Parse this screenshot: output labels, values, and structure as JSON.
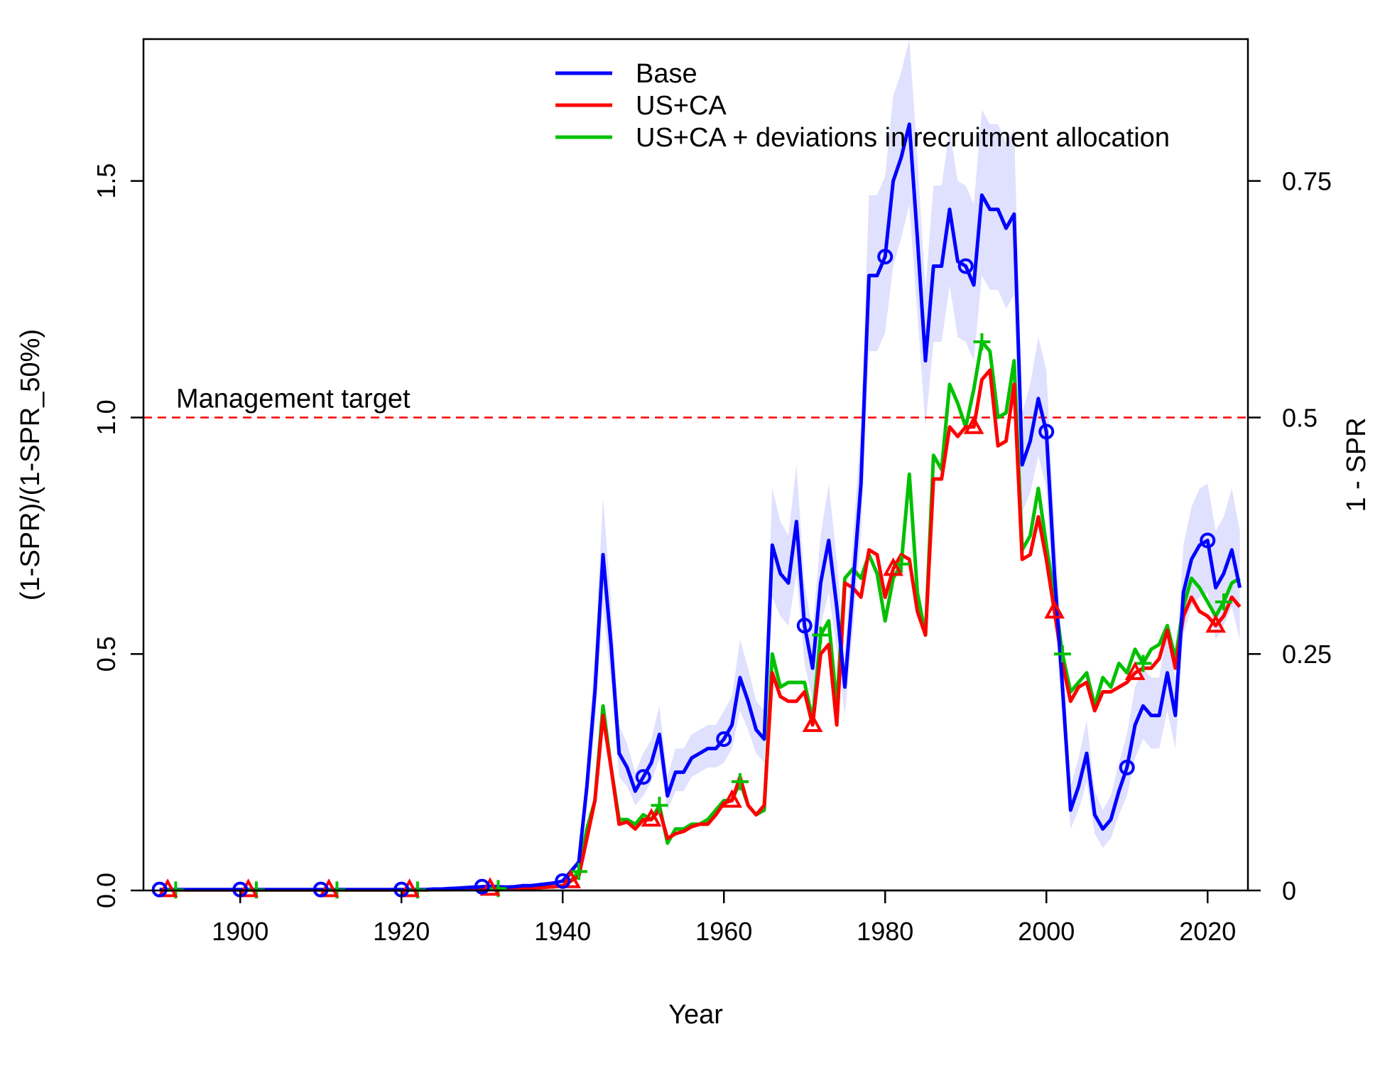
{
  "chart_data": {
    "type": "line",
    "title": "",
    "xlabel": "Year",
    "ylabel": "(1-SPR)/(1-SPR_50%)",
    "y2label": "1 - SPR",
    "xlim": [
      1888,
      2025
    ],
    "ylim": [
      0,
      1.8
    ],
    "y2lim": [
      0,
      0.9
    ],
    "x_ticks": [
      "1900",
      "1920",
      "1940",
      "1960",
      "1980",
      "2000",
      "2020"
    ],
    "y_ticks": [
      "0.0",
      "0.5",
      "1.0",
      "1.5"
    ],
    "y2_ticks": [
      "0",
      "0.25",
      "0.5",
      "0.75"
    ],
    "legend_position": "top",
    "grid": false,
    "reference_line": {
      "y": 1.0,
      "label": "Management target",
      "color": "#ff0000"
    },
    "series": [
      {
        "name": "Base",
        "color": "#0000ff",
        "marker": "circle",
        "x": [
          1890,
          1891,
          1892,
          1893,
          1894,
          1895,
          1896,
          1897,
          1898,
          1899,
          1900,
          1901,
          1902,
          1903,
          1904,
          1905,
          1906,
          1907,
          1908,
          1909,
          1910,
          1911,
          1912,
          1913,
          1914,
          1915,
          1916,
          1917,
          1918,
          1919,
          1920,
          1921,
          1922,
          1923,
          1924,
          1925,
          1926,
          1927,
          1928,
          1929,
          1930,
          1931,
          1932,
          1933,
          1934,
          1935,
          1936,
          1937,
          1938,
          1939,
          1940,
          1941,
          1942,
          1943,
          1944,
          1945,
          1946,
          1947,
          1948,
          1949,
          1950,
          1951,
          1952,
          1953,
          1954,
          1955,
          1956,
          1957,
          1958,
          1959,
          1960,
          1961,
          1962,
          1963,
          1964,
          1965,
          1966,
          1967,
          1968,
          1969,
          1970,
          1971,
          1972,
          1973,
          1974,
          1975,
          1976,
          1977,
          1978,
          1979,
          1980,
          1981,
          1982,
          1983,
          1984,
          1985,
          1986,
          1987,
          1988,
          1989,
          1990,
          1991,
          1992,
          1993,
          1994,
          1995,
          1996,
          1997,
          1998,
          1999,
          2000,
          2001,
          2002,
          2003,
          2004,
          2005,
          2006,
          2007,
          2008,
          2009,
          2010,
          2011,
          2012,
          2013,
          2014,
          2015,
          2016,
          2017,
          2018,
          2019,
          2020,
          2021,
          2022,
          2023,
          2024
        ],
        "values": [
          0.002,
          0.002,
          0.002,
          0.002,
          0.002,
          0.002,
          0.002,
          0.002,
          0.002,
          0.002,
          0.002,
          0.002,
          0.002,
          0.002,
          0.002,
          0.002,
          0.002,
          0.002,
          0.002,
          0.002,
          0.002,
          0.002,
          0.002,
          0.002,
          0.002,
          0.002,
          0.002,
          0.002,
          0.002,
          0.002,
          0.002,
          0.002,
          0.002,
          0.002,
          0.003,
          0.003,
          0.004,
          0.005,
          0.006,
          0.007,
          0.008,
          0.009,
          0.008,
          0.007,
          0.008,
          0.01,
          0.01,
          0.012,
          0.014,
          0.016,
          0.02,
          0.04,
          0.06,
          0.22,
          0.42,
          0.71,
          0.52,
          0.29,
          0.26,
          0.21,
          0.24,
          0.27,
          0.33,
          0.2,
          0.25,
          0.25,
          0.28,
          0.29,
          0.3,
          0.3,
          0.32,
          0.35,
          0.45,
          0.4,
          0.34,
          0.32,
          0.73,
          0.67,
          0.65,
          0.78,
          0.56,
          0.47,
          0.65,
          0.74,
          0.6,
          0.43,
          0.64,
          0.86,
          1.3,
          1.3,
          1.34,
          1.5,
          1.55,
          1.62,
          1.38,
          1.12,
          1.32,
          1.32,
          1.44,
          1.33,
          1.32,
          1.28,
          1.47,
          1.44,
          1.44,
          1.4,
          1.43,
          0.9,
          0.95,
          1.04,
          0.97,
          0.67,
          0.43,
          0.17,
          0.22,
          0.29,
          0.16,
          0.13,
          0.15,
          0.21,
          0.26,
          0.35,
          0.39,
          0.37,
          0.37,
          0.46,
          0.37,
          0.63,
          0.7,
          0.73,
          0.74,
          0.64,
          0.67,
          0.72,
          0.64
        ]
      },
      {
        "name": "US+CA",
        "color": "#ff0000",
        "marker": "triangle",
        "x": [
          1890,
          1891,
          1892,
          1893,
          1894,
          1895,
          1896,
          1897,
          1898,
          1899,
          1900,
          1901,
          1902,
          1903,
          1904,
          1905,
          1906,
          1907,
          1908,
          1909,
          1910,
          1911,
          1912,
          1913,
          1914,
          1915,
          1916,
          1917,
          1918,
          1919,
          1920,
          1921,
          1922,
          1923,
          1924,
          1925,
          1926,
          1927,
          1928,
          1929,
          1930,
          1931,
          1932,
          1933,
          1934,
          1935,
          1936,
          1937,
          1938,
          1939,
          1940,
          1941,
          1942,
          1943,
          1944,
          1945,
          1946,
          1947,
          1948,
          1949,
          1950,
          1951,
          1952,
          1953,
          1954,
          1955,
          1956,
          1957,
          1958,
          1959,
          1960,
          1961,
          1962,
          1963,
          1964,
          1965,
          1966,
          1967,
          1968,
          1969,
          1970,
          1971,
          1972,
          1973,
          1974,
          1975,
          1976,
          1977,
          1978,
          1979,
          1980,
          1981,
          1982,
          1983,
          1984,
          1985,
          1986,
          1987,
          1988,
          1989,
          1990,
          1991,
          1992,
          1993,
          1994,
          1995,
          1996,
          1997,
          1998,
          1999,
          2000,
          2001,
          2002,
          2003,
          2004,
          2005,
          2006,
          2007,
          2008,
          2009,
          2010,
          2011,
          2012,
          2013,
          2014,
          2015,
          2016,
          2017,
          2018,
          2019,
          2020,
          2021,
          2022,
          2023,
          2024
        ],
        "values": [
          0.001,
          0.001,
          0.001,
          0.001,
          0.001,
          0.001,
          0.001,
          0.001,
          0.001,
          0.001,
          0.001,
          0.001,
          0.001,
          0.001,
          0.001,
          0.001,
          0.001,
          0.001,
          0.001,
          0.001,
          0.001,
          0.001,
          0.001,
          0.001,
          0.001,
          0.001,
          0.001,
          0.001,
          0.001,
          0.001,
          0.001,
          0.001,
          0.001,
          0.001,
          0.002,
          0.002,
          0.002,
          0.003,
          0.003,
          0.003,
          0.004,
          0.004,
          0.004,
          0.004,
          0.004,
          0.005,
          0.005,
          0.006,
          0.007,
          0.008,
          0.01,
          0.02,
          0.03,
          0.11,
          0.19,
          0.37,
          0.26,
          0.14,
          0.145,
          0.13,
          0.15,
          0.15,
          0.17,
          0.11,
          0.12,
          0.125,
          0.135,
          0.14,
          0.14,
          0.16,
          0.185,
          0.19,
          0.24,
          0.18,
          0.16,
          0.18,
          0.46,
          0.41,
          0.4,
          0.4,
          0.42,
          0.35,
          0.5,
          0.52,
          0.35,
          0.65,
          0.64,
          0.62,
          0.72,
          0.71,
          0.62,
          0.68,
          0.71,
          0.7,
          0.59,
          0.54,
          0.87,
          0.87,
          0.98,
          0.96,
          0.98,
          0.98,
          1.08,
          1.1,
          0.94,
          0.95,
          1.07,
          0.7,
          0.71,
          0.79,
          0.7,
          0.59,
          0.48,
          0.4,
          0.43,
          0.44,
          0.38,
          0.42,
          0.42,
          0.43,
          0.44,
          0.46,
          0.47,
          0.47,
          0.49,
          0.55,
          0.47,
          0.58,
          0.62,
          0.59,
          0.58,
          0.56,
          0.58,
          0.62,
          0.6
        ]
      },
      {
        "name": "US+CA + deviations in recruitment allocation",
        "color": "#00c000",
        "marker": "plus",
        "x": [
          1890,
          1891,
          1892,
          1893,
          1894,
          1895,
          1896,
          1897,
          1898,
          1899,
          1900,
          1901,
          1902,
          1903,
          1904,
          1905,
          1906,
          1907,
          1908,
          1909,
          1910,
          1911,
          1912,
          1913,
          1914,
          1915,
          1916,
          1917,
          1918,
          1919,
          1920,
          1921,
          1922,
          1923,
          1924,
          1925,
          1926,
          1927,
          1928,
          1929,
          1930,
          1931,
          1932,
          1933,
          1934,
          1935,
          1936,
          1937,
          1938,
          1939,
          1940,
          1941,
          1942,
          1943,
          1944,
          1945,
          1946,
          1947,
          1948,
          1949,
          1950,
          1951,
          1952,
          1953,
          1954,
          1955,
          1956,
          1957,
          1958,
          1959,
          1960,
          1961,
          1962,
          1963,
          1964,
          1965,
          1966,
          1967,
          1968,
          1969,
          1970,
          1971,
          1972,
          1973,
          1974,
          1975,
          1976,
          1977,
          1978,
          1979,
          1980,
          1981,
          1982,
          1983,
          1984,
          1985,
          1986,
          1987,
          1988,
          1989,
          1990,
          1991,
          1992,
          1993,
          1994,
          1995,
          1996,
          1997,
          1998,
          1999,
          2000,
          2001,
          2002,
          2003,
          2004,
          2005,
          2006,
          2007,
          2008,
          2009,
          2010,
          2011,
          2012,
          2013,
          2014,
          2015,
          2016,
          2017,
          2018,
          2019,
          2020,
          2021,
          2022,
          2023,
          2024
        ],
        "values": [
          0.001,
          0.001,
          0.001,
          0.001,
          0.001,
          0.001,
          0.001,
          0.001,
          0.001,
          0.001,
          0.001,
          0.001,
          0.001,
          0.001,
          0.001,
          0.001,
          0.001,
          0.001,
          0.001,
          0.001,
          0.001,
          0.001,
          0.001,
          0.001,
          0.001,
          0.001,
          0.001,
          0.001,
          0.001,
          0.001,
          0.001,
          0.001,
          0.001,
          0.001,
          0.002,
          0.002,
          0.002,
          0.003,
          0.003,
          0.003,
          0.004,
          0.004,
          0.004,
          0.004,
          0.004,
          0.005,
          0.005,
          0.006,
          0.007,
          0.008,
          0.01,
          0.02,
          0.04,
          0.13,
          0.19,
          0.39,
          0.26,
          0.15,
          0.15,
          0.14,
          0.16,
          0.15,
          0.18,
          0.1,
          0.13,
          0.13,
          0.14,
          0.14,
          0.15,
          0.17,
          0.19,
          0.19,
          0.23,
          0.18,
          0.16,
          0.17,
          0.5,
          0.43,
          0.44,
          0.44,
          0.44,
          0.36,
          0.54,
          0.57,
          0.39,
          0.66,
          0.68,
          0.66,
          0.71,
          0.67,
          0.57,
          0.66,
          0.69,
          0.88,
          0.63,
          0.54,
          0.92,
          0.89,
          1.07,
          1.03,
          0.98,
          1.06,
          1.16,
          1.14,
          1.0,
          1.01,
          1.12,
          0.72,
          0.75,
          0.85,
          0.73,
          0.62,
          0.5,
          0.42,
          0.44,
          0.46,
          0.39,
          0.45,
          0.43,
          0.48,
          0.46,
          0.51,
          0.48,
          0.51,
          0.52,
          0.56,
          0.49,
          0.6,
          0.66,
          0.64,
          0.61,
          0.58,
          0.61,
          0.65,
          0.66
        ]
      }
    ],
    "band": {
      "series": "Base",
      "color": "#e0e0ff",
      "x": [
        1940,
        1941,
        1942,
        1943,
        1944,
        1945,
        1946,
        1947,
        1948,
        1949,
        1950,
        1951,
        1952,
        1953,
        1954,
        1955,
        1956,
        1957,
        1958,
        1959,
        1960,
        1961,
        1962,
        1963,
        1964,
        1965,
        1966,
        1967,
        1968,
        1969,
        1970,
        1971,
        1972,
        1973,
        1974,
        1975,
        1976,
        1977,
        1978,
        1979,
        1980,
        1981,
        1982,
        1983,
        1984,
        1985,
        1986,
        1987,
        1988,
        1989,
        1990,
        1991,
        1992,
        1993,
        1994,
        1995,
        1996,
        1997,
        1998,
        1999,
        2000,
        2001,
        2002,
        2003,
        2004,
        2005,
        2006,
        2007,
        2008,
        2009,
        2010,
        2011,
        2012,
        2013,
        2014,
        2015,
        2016,
        2017,
        2018,
        2019,
        2020,
        2021,
        2022,
        2023,
        2024
      ],
      "lower": [
        0.018,
        0.035,
        0.05,
        0.18,
        0.35,
        0.6,
        0.44,
        0.24,
        0.22,
        0.18,
        0.2,
        0.23,
        0.28,
        0.17,
        0.21,
        0.21,
        0.24,
        0.25,
        0.26,
        0.26,
        0.27,
        0.3,
        0.38,
        0.34,
        0.29,
        0.27,
        0.62,
        0.58,
        0.56,
        0.67,
        0.48,
        0.4,
        0.56,
        0.63,
        0.51,
        0.37,
        0.55,
        0.75,
        1.14,
        1.14,
        1.18,
        1.32,
        1.38,
        1.45,
        1.22,
        0.98,
        1.16,
        1.16,
        1.28,
        1.17,
        1.16,
        1.12,
        1.3,
        1.27,
        1.27,
        1.23,
        1.26,
        0.8,
        0.84,
        0.92,
        0.85,
        0.58,
        0.36,
        0.13,
        0.17,
        0.23,
        0.12,
        0.09,
        0.11,
        0.16,
        0.2,
        0.28,
        0.32,
        0.3,
        0.3,
        0.38,
        0.3,
        0.54,
        0.6,
        0.62,
        0.63,
        0.53,
        0.56,
        0.6,
        0.53
      ],
      "upper": [
        0.022,
        0.045,
        0.07,
        0.27,
        0.5,
        0.83,
        0.61,
        0.35,
        0.31,
        0.25,
        0.29,
        0.32,
        0.39,
        0.24,
        0.3,
        0.3,
        0.33,
        0.34,
        0.35,
        0.35,
        0.38,
        0.41,
        0.53,
        0.47,
        0.4,
        0.38,
        0.85,
        0.78,
        0.75,
        0.9,
        0.65,
        0.55,
        0.75,
        0.86,
        0.7,
        0.5,
        0.74,
        0.98,
        1.47,
        1.47,
        1.51,
        1.68,
        1.73,
        1.8,
        1.55,
        1.27,
        1.49,
        1.49,
        1.61,
        1.5,
        1.49,
        1.45,
        1.65,
        1.62,
        1.62,
        1.58,
        1.61,
        1.01,
        1.07,
        1.17,
        1.1,
        0.77,
        0.51,
        0.22,
        0.28,
        0.36,
        0.21,
        0.17,
        0.2,
        0.27,
        0.33,
        0.43,
        0.47,
        0.45,
        0.45,
        0.55,
        0.45,
        0.73,
        0.81,
        0.85,
        0.86,
        0.76,
        0.79,
        0.85,
        0.76
      ]
    }
  }
}
